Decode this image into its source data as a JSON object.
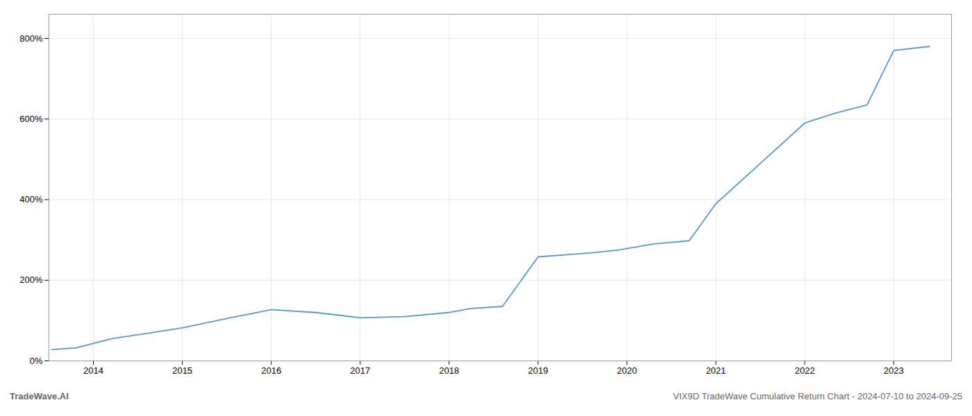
{
  "chart_data": {
    "type": "line",
    "title": "VIX9D TradeWave Cumulative Return Chart - 2024-07-10 to 2024-09-25",
    "annotations": [
      "TradeWave.AI"
    ],
    "x": [
      2013.53,
      2013.8,
      2014.2,
      2014.6,
      2015.0,
      2015.5,
      2016.0,
      2016.5,
      2017.0,
      2017.5,
      2018.0,
      2018.25,
      2018.6,
      2019.0,
      2019.3,
      2019.6,
      2019.9,
      2020.3,
      2020.7,
      2021.0,
      2021.5,
      2022.0,
      2022.35,
      2022.7,
      2023.0,
      2023.4
    ],
    "values": [
      28,
      32,
      55,
      68,
      82,
      105,
      127,
      120,
      107,
      110,
      120,
      130,
      135,
      258,
      263,
      268,
      275,
      290,
      298,
      390,
      490,
      590,
      615,
      635,
      770,
      780
    ],
    "color": "#5599cc",
    "xlim": [
      2013.5,
      2023.65
    ],
    "xticks": [
      2014,
      2015,
      2016,
      2017,
      2018,
      2019,
      2020,
      2021,
      2022,
      2023
    ],
    "ylim": [
      0,
      860
    ],
    "yticks": [
      {
        "value": 0,
        "label": "0%"
      },
      {
        "value": 200,
        "label": "200%"
      },
      {
        "value": 400,
        "label": "400%"
      },
      {
        "value": 600,
        "label": "600%"
      },
      {
        "value": 800,
        "label": "800%"
      }
    ],
    "grid": true
  }
}
